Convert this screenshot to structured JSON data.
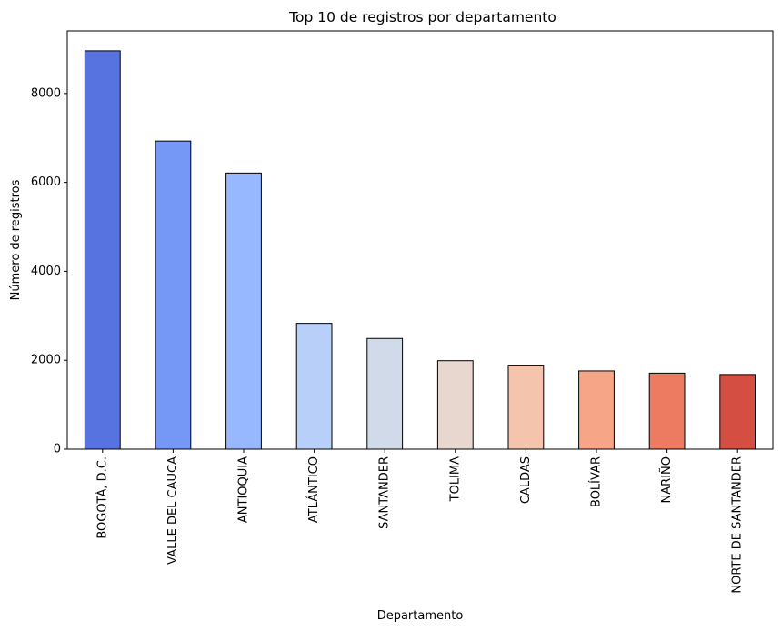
{
  "chart_data": {
    "type": "bar",
    "title": "Top 10 de registros por departamento",
    "xlabel": "Departamento",
    "ylabel": "Número de registros",
    "categories": [
      "BOGOTÁ, D.C.",
      "VALLE DEL CAUCA",
      "ANTIOQUIA",
      "ATLÁNTICO",
      "SANTANDER",
      "TOLIMA",
      "CALDAS",
      "BOLÍVAR",
      "NARIÑO",
      "NORTE DE SANTANDER"
    ],
    "values": [
      8960,
      6930,
      6210,
      2830,
      2490,
      1990,
      1890,
      1760,
      1710,
      1680
    ],
    "colors": [
      "#5673e0",
      "#7597f6",
      "#97b8ff",
      "#b7cff9",
      "#d1dae9",
      "#e7d7ce",
      "#f4c4ad",
      "#f6a586",
      "#ec7b62",
      "#d44e41"
    ],
    "yticks": [
      0,
      2000,
      4000,
      6000,
      8000
    ],
    "ylim": [
      0,
      9408
    ],
    "grid": false,
    "legend": "none"
  }
}
